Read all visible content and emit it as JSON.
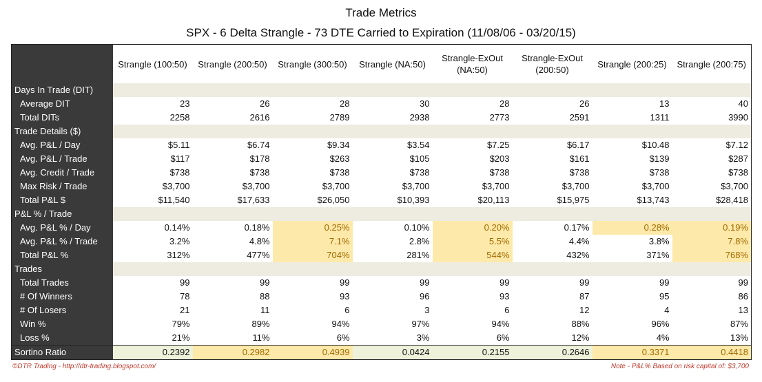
{
  "title": "Trade Metrics",
  "subtitle": "SPX - 6 Delta Strangle - 73 DTE Carried to Expiration    (11/08/06 - 03/20/15)",
  "columns": [
    "Strangle (100:50)",
    "Strangle (200:50)",
    "Strangle (300:50)",
    "Strangle (NA:50)",
    "Strangle-ExOut (NA:50)",
    "Strangle-ExOut (200:50)",
    "Strangle (200:25)",
    "Strangle (200:75)"
  ],
  "rows": [
    {
      "label": "Days In Trade (DIT)",
      "section": true
    },
    {
      "label": "Average DIT",
      "values": [
        "23",
        "26",
        "28",
        "30",
        "28",
        "26",
        "13",
        "40"
      ]
    },
    {
      "label": "Total DITs",
      "values": [
        "2258",
        "2616",
        "2789",
        "2938",
        "2773",
        "2591",
        "1311",
        "3990"
      ]
    },
    {
      "label": "Trade Details ($)",
      "section": true
    },
    {
      "label": "Avg. P&L / Day",
      "values": [
        "$5.11",
        "$6.74",
        "$9.34",
        "$3.54",
        "$7.25",
        "$6.17",
        "$10.48",
        "$7.12"
      ]
    },
    {
      "label": "Avg. P&L / Trade",
      "values": [
        "$117",
        "$178",
        "$263",
        "$105",
        "$203",
        "$161",
        "$139",
        "$287"
      ]
    },
    {
      "label": "Avg. Credit / Trade",
      "values": [
        "$738",
        "$738",
        "$738",
        "$738",
        "$738",
        "$738",
        "$738",
        "$738"
      ]
    },
    {
      "label": "Max Risk / Trade",
      "values": [
        "$3,700",
        "$3,700",
        "$3,700",
        "$3,700",
        "$3,700",
        "$3,700",
        "$3,700",
        "$3,700"
      ]
    },
    {
      "label": "Total P&L $",
      "values": [
        "$11,540",
        "$17,633",
        "$26,050",
        "$10,393",
        "$20,113",
        "$15,975",
        "$13,743",
        "$28,418"
      ]
    },
    {
      "label": "P&L % / Trade",
      "section": true
    },
    {
      "label": "Avg. P&L % / Day",
      "values": [
        "0.14%",
        "0.18%",
        "0.25%",
        "0.10%",
        "0.20%",
        "0.17%",
        "0.28%",
        "0.19%"
      ],
      "highlight": [
        2,
        4,
        6,
        7
      ]
    },
    {
      "label": "Avg. P&L % / Trade",
      "values": [
        "3.2%",
        "4.8%",
        "7.1%",
        "2.8%",
        "5.5%",
        "4.4%",
        "3.8%",
        "7.8%"
      ],
      "highlight": [
        2,
        4,
        7
      ]
    },
    {
      "label": "Total P&L %",
      "values": [
        "312%",
        "477%",
        "704%",
        "281%",
        "544%",
        "432%",
        "371%",
        "768%"
      ],
      "highlight": [
        2,
        4,
        7
      ]
    },
    {
      "label": "Trades",
      "section": true
    },
    {
      "label": "Total Trades",
      "values": [
        "99",
        "99",
        "99",
        "99",
        "99",
        "99",
        "99",
        "99"
      ]
    },
    {
      "label": "# Of Winners",
      "values": [
        "78",
        "88",
        "93",
        "96",
        "93",
        "87",
        "95",
        "86"
      ]
    },
    {
      "label": "# Of Losers",
      "values": [
        "21",
        "11",
        "6",
        "3",
        "6",
        "12",
        "4",
        "13"
      ]
    },
    {
      "label": "Win %",
      "values": [
        "79%",
        "89%",
        "94%",
        "97%",
        "94%",
        "88%",
        "96%",
        "87%"
      ]
    },
    {
      "label": "Loss %",
      "values": [
        "21%",
        "11%",
        "6%",
        "3%",
        "6%",
        "12%",
        "4%",
        "13%"
      ]
    },
    {
      "label": "Sortino Ratio",
      "sortino": true,
      "values": [
        "0.2392",
        "0.2982",
        "0.4939",
        "0.0424",
        "0.2155",
        "0.2646",
        "0.3371",
        "0.4418"
      ],
      "highlight": [
        1,
        2,
        6,
        7
      ]
    }
  ],
  "footer_left": "©DTR Trading   -   http://dtr-trading.blogspot.com/",
  "footer_right": "Note - P&L% Based on risk capital of: $3,700"
}
